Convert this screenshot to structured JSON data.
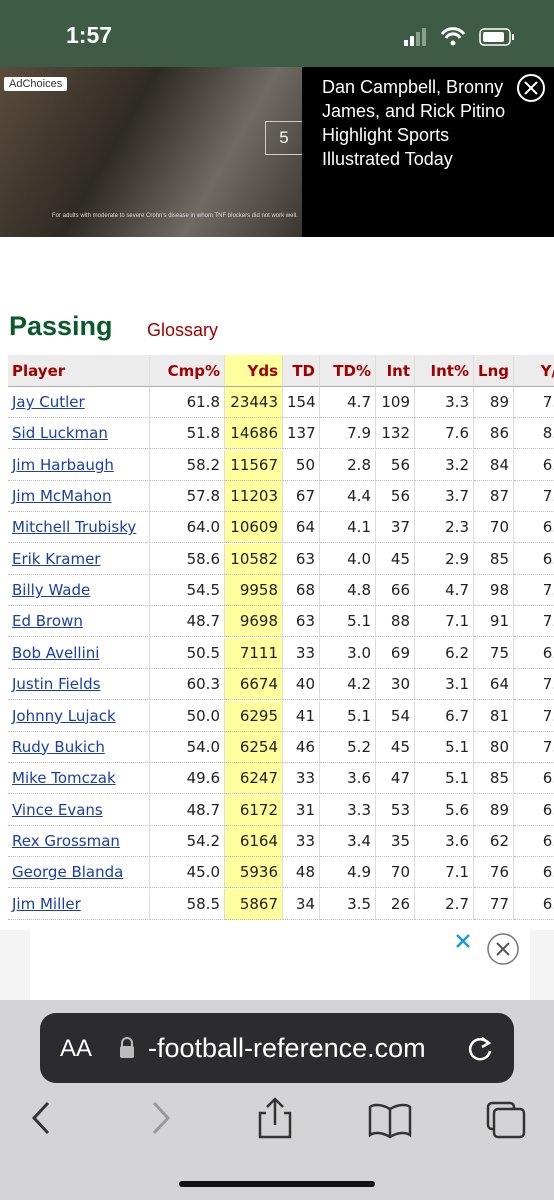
{
  "status_bar": {
    "time": "1:57"
  },
  "ad": {
    "badge": "AdChoices",
    "counter": "5",
    "fine_print": "For adults with moderate to severe Crohn's disease in whom TNF blockers did not work well.",
    "headline": "Dan Campbell, Bronny James, and Rick Pitino Highlight Sports Illustrated Today"
  },
  "section": {
    "title": "Passing",
    "link": "Glossary"
  },
  "table": {
    "columns": [
      "Player",
      "Cmp%",
      "Yds",
      "TD",
      "TD%",
      "Int",
      "Int%",
      "Lng",
      "Y/"
    ],
    "rows": [
      [
        "Jay Cutler",
        "61.8",
        "23443",
        "154",
        "4.7",
        "109",
        "3.3",
        "89",
        "7."
      ],
      [
        "Sid Luckman",
        "51.8",
        "14686",
        "137",
        "7.9",
        "132",
        "7.6",
        "86",
        "8."
      ],
      [
        "Jim Harbaugh",
        "58.2",
        "11567",
        "50",
        "2.8",
        "56",
        "3.2",
        "84",
        "6."
      ],
      [
        "Jim McMahon",
        "57.8",
        "11203",
        "67",
        "4.4",
        "56",
        "3.7",
        "87",
        "7."
      ],
      [
        "Mitchell Trubisky",
        "64.0",
        "10609",
        "64",
        "4.1",
        "37",
        "2.3",
        "70",
        "6."
      ],
      [
        "Erik Kramer",
        "58.6",
        "10582",
        "63",
        "4.0",
        "45",
        "2.9",
        "85",
        "6."
      ],
      [
        "Billy Wade",
        "54.5",
        "9958",
        "68",
        "4.8",
        "66",
        "4.7",
        "98",
        "7."
      ],
      [
        "Ed Brown",
        "48.7",
        "9698",
        "63",
        "5.1",
        "88",
        "7.1",
        "91",
        "7."
      ],
      [
        "Bob Avellini",
        "50.5",
        "7111",
        "33",
        "3.0",
        "69",
        "6.2",
        "75",
        "6."
      ],
      [
        "Justin Fields",
        "60.3",
        "6674",
        "40",
        "4.2",
        "30",
        "3.1",
        "64",
        "7."
      ],
      [
        "Johnny Lujack",
        "50.0",
        "6295",
        "41",
        "5.1",
        "54",
        "6.7",
        "81",
        "7."
      ],
      [
        "Rudy Bukich",
        "54.0",
        "6254",
        "46",
        "5.2",
        "45",
        "5.1",
        "80",
        "7."
      ],
      [
        "Mike Tomczak",
        "49.6",
        "6247",
        "33",
        "3.6",
        "47",
        "5.1",
        "85",
        "6."
      ],
      [
        "Vince Evans",
        "48.7",
        "6172",
        "31",
        "3.3",
        "53",
        "5.6",
        "89",
        "6."
      ],
      [
        "Rex Grossman",
        "54.2",
        "6164",
        "33",
        "3.4",
        "35",
        "3.6",
        "62",
        "6."
      ],
      [
        "George Blanda",
        "45.0",
        "5936",
        "48",
        "4.9",
        "70",
        "7.1",
        "76",
        "6."
      ],
      [
        "Jim Miller",
        "58.5",
        "5867",
        "34",
        "3.5",
        "26",
        "2.7",
        "77",
        "6."
      ]
    ]
  },
  "browser": {
    "text_size": "AA",
    "url": "-football-reference.com"
  }
}
